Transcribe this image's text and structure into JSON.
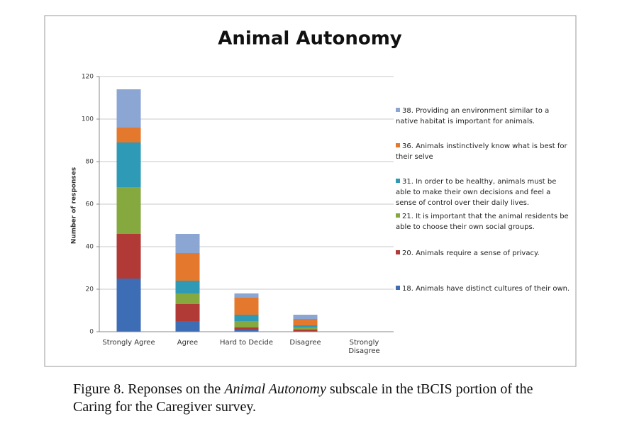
{
  "chart_data": {
    "type": "bar",
    "stacked": true,
    "title": "Animal Autonomy",
    "y_label": "Number of responses",
    "categories": [
      "Strongly Agree",
      "Agree",
      "Hard to Decide",
      "Disagree",
      "Strongly Disagree"
    ],
    "series": [
      {
        "name": "18.  Animals have distinct cultures of their own.",
        "color": "#3d6db4",
        "values": [
          25,
          5,
          1,
          0,
          0
        ]
      },
      {
        "name": "20.  Animals require a sense of privacy.",
        "color": "#b13a37",
        "values": [
          21,
          8,
          1,
          1,
          0
        ]
      },
      {
        "name": "21.  It is important that the animal residents be able to choose their own social groups.",
        "color": "#85a83f",
        "values": [
          22,
          5,
          3,
          1,
          0
        ]
      },
      {
        "name": "31.  In order to be healthy, animals must be able to make their own decisions and feel a sense of control over their daily lives.",
        "color": "#2e9ab6",
        "values": [
          21,
          6,
          3,
          1,
          0
        ]
      },
      {
        "name": "36.  Animals instinctively know what is best for their selve",
        "color": "#e4782c",
        "values": [
          7,
          13,
          8,
          3,
          0
        ]
      },
      {
        "name": "38.  Providing an environment similar to a native habitat is important for animals.",
        "color": "#8ca6d3",
        "values": [
          18,
          9,
          2,
          2,
          0
        ]
      }
    ],
    "ylim": [
      0,
      120
    ],
    "yticks": [
      0,
      20,
      40,
      60,
      80,
      100,
      120
    ],
    "grid": true,
    "legend": "right"
  },
  "caption": {
    "before": "Figure 8. Reponses on the ",
    "italic": "Animal Autonomy",
    "after": " subscale in the tBCIS portion of the Caring for the Caregiver survey."
  }
}
